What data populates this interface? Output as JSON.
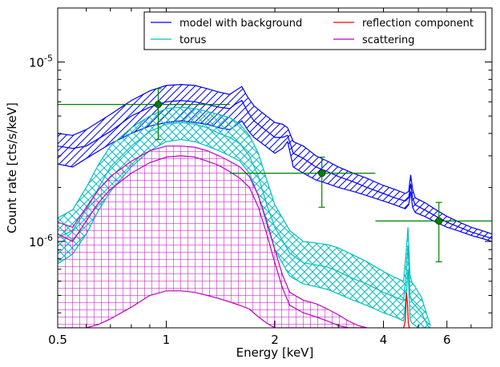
{
  "chart_data": {
    "type": "line",
    "xlabel": "Energy [keV]",
    "ylabel": "Count rate [cts/s/keV]",
    "xscale": "log",
    "yscale": "log",
    "xlim": [
      0.5,
      8.0
    ],
    "ylim": [
      3.3e-07,
      2e-05
    ],
    "xticks": [
      {
        "value": 0.5,
        "label": "0.5"
      },
      {
        "value": 1,
        "label": "1"
      },
      {
        "value": 2,
        "label": "2"
      },
      {
        "value": 4,
        "label": "4"
      },
      {
        "value": 6,
        "label": "6"
      }
    ],
    "yticks": [
      {
        "value": 1e-06,
        "base": "10",
        "exp": "-6"
      },
      {
        "value": 1e-05,
        "base": "10",
        "exp": "-5"
      }
    ],
    "legend": {
      "placement": "top-right",
      "columns": 2,
      "entries": [
        {
          "label": "model with background",
          "color": "#0000ff"
        },
        {
          "label": "reflection component",
          "color": "#ff0000"
        },
        {
          "label": "torus",
          "color": "#00bfbf"
        },
        {
          "label": "scattering",
          "color": "#bf00bf"
        }
      ]
    },
    "series": [
      {
        "key": "model",
        "color": "#0000ff",
        "hatch": "diagonal",
        "x": [
          0.5,
          0.55,
          0.6,
          0.7,
          0.8,
          0.9,
          1.0,
          1.1,
          1.2,
          1.3,
          1.4,
          1.5,
          1.55,
          1.62,
          1.68,
          1.75,
          1.85,
          2.0,
          2.1,
          2.17,
          2.25,
          2.4,
          2.6,
          2.8,
          3.0,
          3.3,
          3.6,
          4.0,
          4.3,
          4.6,
          4.7,
          4.76,
          4.82,
          4.9,
          5.2,
          5.6,
          6.0,
          6.5,
          7.0,
          7.5,
          8.0
        ],
        "upper": [
          4e-06,
          3.9e-06,
          4.2e-06,
          5.1e-06,
          6.1e-06,
          6.9e-06,
          7.4e-06,
          7.5e-06,
          7.4e-06,
          7.1e-06,
          6.8e-06,
          6.6e-06,
          6.9e-06,
          7.3e-06,
          6.4e-06,
          5.7e-06,
          5.2e-06,
          4.6e-06,
          4.5e-06,
          4.3e-06,
          3.6e-06,
          3.4e-06,
          3e-06,
          2.8e-06,
          2.6e-06,
          2.4e-06,
          2.25e-06,
          2.05e-06,
          1.95e-06,
          1.85e-06,
          1.9e-06,
          2.35e-06,
          1.95e-06,
          1.75e-06,
          1.65e-06,
          1.5e-06,
          1.38e-06,
          1.28e-06,
          1.2e-06,
          1.15e-06,
          1.1e-06
        ],
        "mid": [
          3.4e-06,
          3.3e-06,
          3.4e-06,
          4.1e-06,
          5e-06,
          5.6e-06,
          6e-06,
          6.1e-06,
          6e-06,
          5.8e-06,
          5.6e-06,
          5.5e-06,
          5.8e-06,
          6.1e-06,
          5.3e-06,
          4.7e-06,
          4.3e-06,
          3.8e-06,
          3.8e-06,
          3.9e-06,
          3.1e-06,
          2.9e-06,
          2.6e-06,
          2.45e-06,
          2.3e-06,
          2.15e-06,
          2e-06,
          1.85e-06,
          1.75e-06,
          1.68e-06,
          1.75e-06,
          2.1e-06,
          1.75e-06,
          1.6e-06,
          1.5e-06,
          1.38e-06,
          1.28e-06,
          1.2e-06,
          1.13e-06,
          1.08e-06,
          1.04e-06
        ],
        "lower": [
          2.7e-06,
          2.6e-06,
          2.9e-06,
          3.5e-06,
          4e-06,
          4.4e-06,
          4.6e-06,
          4.7e-06,
          4.6e-06,
          4.5e-06,
          4.3e-06,
          4.2e-06,
          4.4e-06,
          4.7e-06,
          4.2e-06,
          3.8e-06,
          3.5e-06,
          3.1e-06,
          3.3e-06,
          3.6e-06,
          2.6e-06,
          2.4e-06,
          2.2e-06,
          2.1e-06,
          2e-06,
          1.9e-06,
          1.8e-06,
          1.68e-06,
          1.6e-06,
          1.52e-06,
          1.6e-06,
          1.9e-06,
          1.55e-06,
          1.45e-06,
          1.38e-06,
          1.28e-06,
          1.2e-06,
          1.14e-06,
          1.08e-06,
          1.04e-06,
          1e-06
        ]
      },
      {
        "key": "torus",
        "color": "#00bfbf",
        "hatch": "crosshatch",
        "x": [
          0.5,
          0.55,
          0.6,
          0.65,
          0.7,
          0.8,
          0.9,
          1.0,
          1.1,
          1.2,
          1.3,
          1.4,
          1.5,
          1.6,
          1.7,
          1.8,
          1.9,
          2.0,
          2.2,
          2.4,
          2.6,
          2.8,
          3.0,
          3.3,
          3.6,
          4.0,
          4.3,
          4.55,
          4.62,
          4.68,
          4.74,
          4.8,
          4.9,
          5.0,
          5.1,
          5.2,
          5.3,
          5.4
        ],
        "upper": [
          1.35e-06,
          1.5e-06,
          2e-06,
          2.7e-06,
          3.4e-06,
          4.3e-06,
          5e-06,
          5.5e-06,
          5.6e-06,
          5.5e-06,
          5.3e-06,
          5.1e-06,
          4.9e-06,
          4.5e-06,
          3.9e-06,
          3.1e-06,
          2.2e-06,
          1.6e-06,
          1.15e-06,
          1e-06,
          9.8e-07,
          9.6e-07,
          9.2e-07,
          8.4e-07,
          7.7e-07,
          6.8e-07,
          6.3e-07,
          6e-07,
          8.5e-07,
          1.2e-06,
          6.5e-07,
          5.9e-07,
          5.6e-07,
          5.2e-07,
          4.9e-07,
          4.3e-07,
          3.8e-07,
          3.4e-07
        ],
        "mid": [
          1.05e-06,
          1.15e-06,
          1.5e-06,
          2e-06,
          2.6e-06,
          3.4e-06,
          4.1e-06,
          4.5e-06,
          4.6e-06,
          4.5e-06,
          4.3e-06,
          4e-06,
          3.8e-06,
          3.5e-06,
          3e-06,
          2.3e-06,
          1.6e-06,
          1.2e-06,
          8.6e-07,
          7.6e-07,
          7.4e-07,
          7.2e-07,
          6.8e-07,
          6.2e-07,
          5.8e-07,
          5.2e-07,
          4.9e-07,
          4.7e-07,
          6.4e-07,
          9.5e-07,
          5e-07,
          4.6e-07,
          4.4e-07,
          4.2e-07,
          4e-07,
          3.7e-07,
          3.4e-07,
          3.3e-07
        ],
        "lower": [
          7.5e-07,
          8.5e-07,
          1.1e-06,
          1.5e-06,
          1.9e-06,
          2.6e-06,
          3.2e-06,
          3.6e-06,
          3.7e-06,
          3.6e-06,
          3.4e-06,
          3.2e-06,
          3e-06,
          2.8e-06,
          2.4e-06,
          1.8e-06,
          1.25e-06,
          9e-07,
          6.4e-07,
          5.8e-07,
          5.6e-07,
          5.4e-07,
          5.1e-07,
          4.7e-07,
          4.4e-07,
          4e-07,
          3.8e-07,
          3.6e-07,
          4.8e-07,
          7e-07,
          3.7e-07,
          3.5e-07,
          3.4e-07,
          3.3e-07,
          3.3e-07,
          3.3e-07,
          3.3e-07,
          3.3e-07
        ]
      },
      {
        "key": "scattering",
        "color": "#bf00bf",
        "hatch": "grid",
        "x": [
          0.5,
          0.55,
          0.6,
          0.65,
          0.7,
          0.8,
          0.9,
          1.0,
          1.1,
          1.2,
          1.3,
          1.4,
          1.5,
          1.6,
          1.7,
          1.8,
          1.9,
          2.0,
          2.1,
          2.2,
          2.4,
          2.6,
          2.8,
          3.0,
          3.2,
          3.4,
          3.6
        ],
        "upper": [
          1.28e-06,
          1.2e-06,
          1.55e-06,
          1.95e-06,
          2.3e-06,
          2.8e-06,
          3.2e-06,
          3.4e-06,
          3.4e-06,
          3.35e-06,
          3.2e-06,
          3e-06,
          2.8e-06,
          2.6e-06,
          2.3e-06,
          1.8e-06,
          1.3e-06,
          9e-07,
          6.5e-07,
          5.2e-07,
          4.7e-07,
          4.5e-07,
          4.2e-07,
          3.9e-07,
          3.6e-07,
          3.4e-07,
          3.3e-07
        ],
        "mid": [
          1.1e-06,
          1e-06,
          1.3e-06,
          1.65e-06,
          1.95e-06,
          2.4e-06,
          2.75e-06,
          2.95e-06,
          3e-06,
          2.95e-06,
          2.8e-06,
          2.65e-06,
          2.45e-06,
          2.25e-06,
          2e-06,
          1.55e-06,
          1.1e-06,
          7.6e-07,
          5.5e-07,
          4.4e-07,
          4e-07,
          3.8e-07,
          3.6e-07,
          3.4e-07,
          3.3e-07,
          3.3e-07,
          3.3e-07
        ],
        "lower": [
          3.3e-07,
          3.3e-07,
          3.3e-07,
          3.45e-07,
          3.7e-07,
          4.3e-07,
          5e-07,
          5.3e-07,
          5.3e-07,
          5.2e-07,
          5e-07,
          4.8e-07,
          4.6e-07,
          4.4e-07,
          4.2e-07,
          3.8e-07,
          3.5e-07,
          3.3e-07,
          3.3e-07,
          3.3e-07,
          3.3e-07,
          3.3e-07,
          3.3e-07,
          3.3e-07,
          3.3e-07,
          3.3e-07,
          3.3e-07
        ]
      }
    ],
    "reflection_component": {
      "color": "#ff0000",
      "x": [
        4.55,
        4.6,
        4.63,
        4.66,
        4.69,
        4.72
      ],
      "y": [
        3.3e-07,
        3.6e-07,
        5.2e-07,
        4.6e-07,
        3.5e-07,
        3.3e-07
      ]
    },
    "data_points": {
      "color": "#008000",
      "points": [
        {
          "x": 0.95,
          "y": 5.8e-06,
          "xerr": [
            0.5,
            1.5
          ],
          "yerr": [
            3.7e-06,
            7.1e-06
          ]
        },
        {
          "x": 2.7,
          "y": 2.4e-06,
          "xerr": [
            1.5,
            3.8
          ],
          "yerr": [
            1.55e-06,
            2.95e-06
          ]
        },
        {
          "x": 5.7,
          "y": 1.3e-06,
          "xerr": [
            3.8,
            8.0
          ],
          "yerr": [
            7.7e-07,
            1.65e-06
          ]
        }
      ]
    }
  }
}
